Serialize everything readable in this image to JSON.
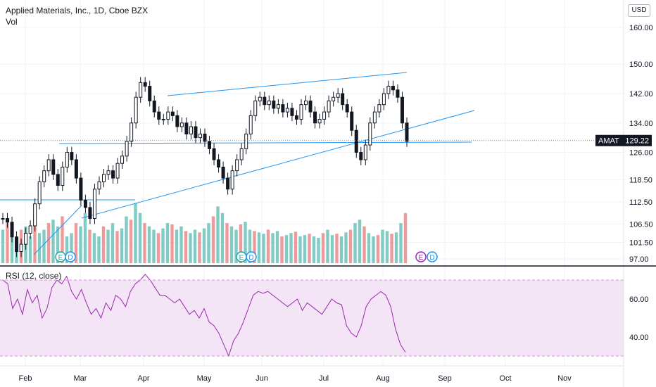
{
  "header": {
    "title": "Applied Materials, Inc., 1D, Cboe BZX",
    "vol_label": "Vol",
    "currency_button": "USD"
  },
  "price_label": {
    "ticker": "AMAT",
    "value": "129.22"
  },
  "rsi": {
    "title": "RSI (12, close)"
  },
  "events": {
    "earnings": "E",
    "dividend": "D"
  },
  "colors": {
    "up": "#26a69a",
    "down": "#ef5350",
    "candle": "#131722",
    "trend": "#2196f3",
    "rsi_line": "#9c27b0",
    "rsi_fill": "#f3e5f5"
  },
  "chart_data": [
    {
      "type": "candlestick",
      "title": "Applied Materials, Inc., 1D, Cboe BZX",
      "y_ticks": [
        "160.00",
        "150.00",
        "142.00",
        "134.00",
        "126.00",
        "118.50",
        "112.50",
        "106.50",
        "101.50",
        "97.00"
      ],
      "x_ticks": [
        "Feb",
        "Mar",
        "Apr",
        "May",
        "Jun",
        "Jul",
        "Aug",
        "Sep",
        "Oct",
        "Nov"
      ],
      "last_close": 129.22,
      "close_series_approx": [
        108,
        107,
        103,
        99,
        101,
        104,
        106,
        112,
        118,
        121,
        124,
        120,
        117,
        122,
        126,
        124,
        119,
        113,
        111,
        108,
        116,
        118,
        120,
        121,
        119,
        123,
        125,
        129,
        134,
        141,
        145,
        144,
        140,
        137,
        135,
        135,
        137,
        136,
        133,
        134,
        131,
        133,
        130,
        131,
        129,
        127,
        124,
        122,
        119,
        116,
        121,
        124,
        127,
        131,
        136,
        140,
        141,
        139,
        140,
        138,
        139,
        137,
        138,
        136,
        135,
        139,
        140,
        137,
        134,
        135,
        137,
        140,
        141,
        142,
        139,
        137,
        132,
        126,
        124,
        128,
        134,
        137,
        139,
        142,
        144,
        143,
        141,
        134,
        129
      ]
    },
    {
      "type": "line",
      "title": "RSI (12, close)",
      "y_ticks": [
        "60.00",
        "40.00"
      ],
      "band": [
        30,
        70
      ],
      "values_approx": [
        70,
        68,
        55,
        60,
        52,
        65,
        58,
        62,
        50,
        55,
        66,
        70,
        68,
        72,
        64,
        60,
        65,
        58,
        52,
        55,
        50,
        58,
        54,
        62,
        60,
        56,
        64,
        68,
        70,
        73,
        70,
        66,
        62,
        62,
        60,
        58,
        60,
        56,
        52,
        54,
        50,
        55,
        48,
        46,
        42,
        36,
        30,
        38,
        42,
        48,
        55,
        62,
        64,
        63,
        64,
        62,
        60,
        58,
        56,
        58,
        60,
        54,
        58,
        56,
        54,
        52,
        56,
        60,
        58,
        57,
        46,
        42,
        40,
        46,
        56,
        60,
        62,
        64,
        62,
        56,
        44,
        36,
        32
      ]
    },
    {
      "type": "bar",
      "title": "Vol",
      "values_approx_relative": [
        0.5,
        0.6,
        0.4,
        0.35,
        0.5,
        0.55,
        0.4,
        0.7,
        0.45,
        0.5,
        0.6,
        0.65,
        0.55,
        0.7,
        0.4,
        0.45,
        0.6,
        0.55,
        0.75,
        0.5,
        0.45,
        0.4,
        0.55,
        0.5,
        0.6,
        0.48,
        0.52,
        0.7,
        0.65,
        0.9,
        0.75,
        0.6,
        0.55,
        0.5,
        0.45,
        0.52,
        0.6,
        0.58,
        0.5,
        0.55,
        0.48,
        0.45,
        0.5,
        0.46,
        0.52,
        0.6,
        0.7,
        0.85,
        0.75,
        0.6,
        0.55,
        0.5,
        0.58,
        0.62,
        0.5,
        0.48,
        0.46,
        0.44,
        0.5,
        0.45,
        0.48,
        0.4,
        0.42,
        0.45,
        0.47,
        0.4,
        0.42,
        0.44,
        0.4,
        0.38,
        0.45,
        0.5,
        0.42,
        0.44,
        0.4,
        0.46,
        0.5,
        0.6,
        0.65,
        0.55,
        0.45,
        0.4,
        0.42,
        0.5,
        0.48,
        0.44,
        0.46,
        0.6,
        0.75
      ]
    }
  ]
}
